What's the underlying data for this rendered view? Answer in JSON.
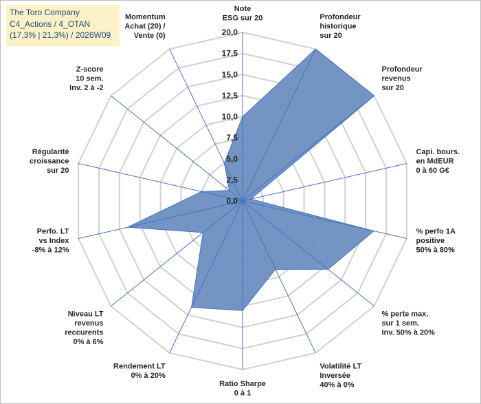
{
  "title_box": {
    "line1": "The Toro Company",
    "line2": "C4_Actions / 4_OTAN",
    "line3": "(17,3% | 21,3%) / 2026W09"
  },
  "chart_data": {
    "type": "radar",
    "rmin": 0,
    "rmax": 20,
    "tick_step": 2.5,
    "ticks": [
      "0,0",
      "2,5",
      "5,0",
      "7,5",
      "10,0",
      "12,5",
      "15,0",
      "17,5",
      "20,0"
    ],
    "grid": true,
    "legend": "none",
    "fill_color": "#6d8fc0",
    "stroke_color": "#4472c4",
    "axes": [
      {
        "label": [
          "Note",
          "ESG sur 20"
        ],
        "value": 10
      },
      {
        "label": [
          "Profondeur",
          "historique",
          "sur 20"
        ],
        "value": 20
      },
      {
        "label": [
          "Profondeur",
          "revenus",
          "sur 20"
        ],
        "value": 20
      },
      {
        "label": [
          "Capi. bours.",
          "en MdEUR",
          "0 à 60 G€"
        ],
        "value": 1
      },
      {
        "label": [
          "% perfo 1A",
          "positive",
          "50% à 80%"
        ],
        "value": 16
      },
      {
        "label": [
          "% perte max.",
          "sur 1 sem.",
          "Inv. 50% à 20%"
        ],
        "value": 13
      },
      {
        "label": [
          "Volatilité LT",
          "Inversée",
          "40% à 0%"
        ],
        "value": 9
      },
      {
        "label": [
          "Ratio Sharpe",
          "0 à 1"
        ],
        "value": 13
      },
      {
        "label": [
          "Rendement LT",
          "0% à 20%"
        ],
        "value": 14
      },
      {
        "label": [
          "Niveau LT",
          "revenus",
          "reccurents",
          "0% à 6%"
        ],
        "value": 6
      },
      {
        "label": [
          "Perfo. LT",
          "vs Index",
          "-8% à 12%"
        ],
        "value": 14
      },
      {
        "label": [
          "Régularité",
          "croissance",
          "sur 20"
        ],
        "value": 5
      },
      {
        "label": [
          "Z-score",
          "10 sem.",
          "Inv. 2 à -2"
        ],
        "value": 2
      },
      {
        "label": [
          "Momentum",
          "Achat (20) /",
          "Vente (0)"
        ],
        "value": 5
      }
    ]
  }
}
